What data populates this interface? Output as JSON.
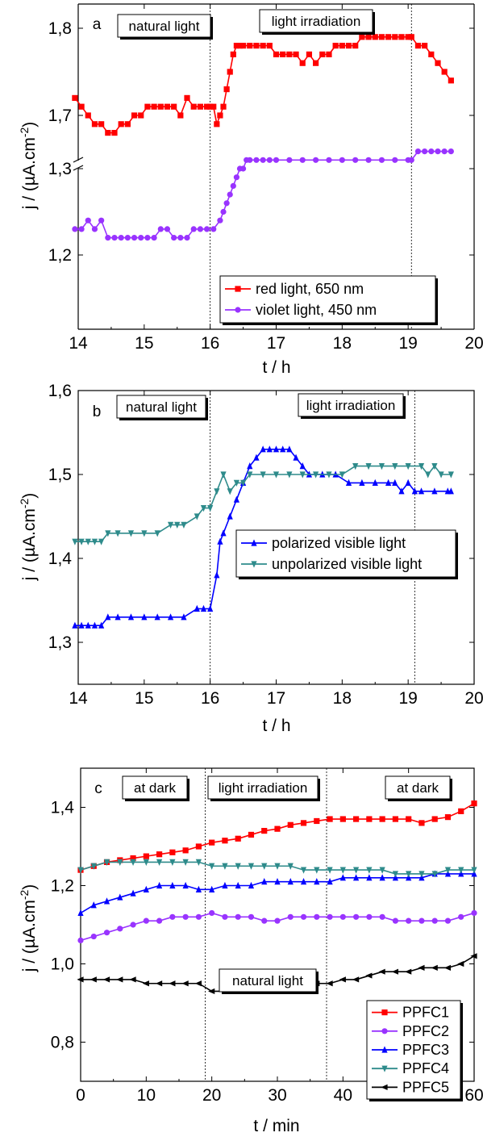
{
  "chart_data": [
    {
      "type": "line",
      "panel_label": "a",
      "xlabel": "t / h",
      "ylabel": "j / (µA.cm-2)",
      "xlim": [
        14,
        20
      ],
      "x_ticks": [
        "14",
        "15",
        "16",
        "17",
        "18",
        "19",
        "20"
      ],
      "y_ticks": [
        "1,2",
        "1,3",
        "1,7",
        "1,8"
      ],
      "y_axis_break": "between 1,3 and 1,7",
      "grid": false,
      "legend_position": "bottom-right",
      "vlines_x": [
        16.0,
        19.05
      ],
      "annotations": [
        "natural light",
        "light irradiation"
      ],
      "series": [
        {
          "name": "red light, 650 nm",
          "color": "#ff0000",
          "marker": "square",
          "x": [
            13.95,
            14.05,
            14.15,
            14.25,
            14.35,
            14.45,
            14.55,
            14.65,
            14.75,
            14.85,
            14.95,
            15.05,
            15.15,
            15.25,
            15.35,
            15.45,
            15.55,
            15.65,
            15.75,
            15.85,
            15.95,
            16.0,
            16.05,
            16.1,
            16.15,
            16.2,
            16.25,
            16.3,
            16.35,
            16.4,
            16.45,
            16.5,
            16.6,
            16.7,
            16.8,
            16.9,
            17.0,
            17.1,
            17.2,
            17.3,
            17.4,
            17.5,
            17.6,
            17.7,
            17.8,
            17.9,
            18.0,
            18.1,
            18.2,
            18.3,
            18.4,
            18.5,
            18.6,
            18.7,
            18.8,
            18.9,
            19.0,
            19.05,
            19.15,
            19.25,
            19.35,
            19.45,
            19.55,
            19.65
          ],
          "y": [
            1.72,
            1.71,
            1.7,
            1.69,
            1.69,
            1.68,
            1.68,
            1.69,
            1.69,
            1.7,
            1.7,
            1.71,
            1.71,
            1.71,
            1.71,
            1.71,
            1.7,
            1.72,
            1.71,
            1.71,
            1.71,
            1.71,
            1.71,
            1.69,
            1.7,
            1.71,
            1.73,
            1.75,
            1.77,
            1.78,
            1.78,
            1.78,
            1.78,
            1.78,
            1.78,
            1.78,
            1.77,
            1.77,
            1.77,
            1.77,
            1.76,
            1.77,
            1.76,
            1.77,
            1.77,
            1.78,
            1.78,
            1.78,
            1.78,
            1.79,
            1.79,
            1.79,
            1.79,
            1.79,
            1.79,
            1.79,
            1.79,
            1.79,
            1.78,
            1.78,
            1.77,
            1.76,
            1.75,
            1.74
          ]
        },
        {
          "name": "violet light, 450 nm",
          "color": "#9933ff",
          "marker": "circle",
          "x": [
            13.95,
            14.05,
            14.15,
            14.25,
            14.35,
            14.45,
            14.55,
            14.65,
            14.75,
            14.85,
            14.95,
            15.05,
            15.15,
            15.25,
            15.35,
            15.45,
            15.55,
            15.65,
            15.75,
            15.85,
            15.95,
            16.05,
            16.15,
            16.2,
            16.25,
            16.3,
            16.35,
            16.4,
            16.45,
            16.5,
            16.55,
            16.6,
            16.7,
            16.8,
            16.9,
            17.0,
            17.2,
            17.4,
            17.6,
            17.8,
            18.0,
            18.2,
            18.4,
            18.6,
            18.8,
            19.0,
            19.05,
            19.15,
            19.25,
            19.35,
            19.45,
            19.55,
            19.65
          ],
          "y": [
            1.23,
            1.23,
            1.24,
            1.23,
            1.24,
            1.22,
            1.22,
            1.22,
            1.22,
            1.22,
            1.22,
            1.22,
            1.22,
            1.23,
            1.23,
            1.22,
            1.22,
            1.22,
            1.23,
            1.23,
            1.23,
            1.23,
            1.24,
            1.25,
            1.26,
            1.27,
            1.28,
            1.29,
            1.3,
            1.3,
            1.31,
            1.31,
            1.31,
            1.31,
            1.31,
            1.31,
            1.31,
            1.31,
            1.31,
            1.31,
            1.31,
            1.31,
            1.31,
            1.31,
            1.31,
            1.31,
            1.31,
            1.32,
            1.32,
            1.32,
            1.32,
            1.32,
            1.32
          ]
        }
      ]
    },
    {
      "type": "line",
      "panel_label": "b",
      "xlabel": "t / h",
      "ylabel": "j / (µA.cm-2)",
      "xlim": [
        14,
        20
      ],
      "ylim": [
        1.25,
        1.6
      ],
      "x_ticks": [
        "14",
        "15",
        "16",
        "17",
        "18",
        "19",
        "20"
      ],
      "y_ticks": [
        "1,3",
        "1,4",
        "1,5",
        "1,6"
      ],
      "grid": false,
      "legend_position": "right",
      "vlines_x": [
        16.0,
        19.1
      ],
      "annotations": [
        "natural light",
        "light irradiation"
      ],
      "series": [
        {
          "name": "polarized visible light",
          "color": "#0000ff",
          "marker": "triangle-up",
          "x": [
            13.95,
            14.05,
            14.15,
            14.25,
            14.35,
            14.45,
            14.6,
            14.8,
            15.0,
            15.2,
            15.4,
            15.6,
            15.8,
            15.9,
            16.0,
            16.1,
            16.15,
            16.2,
            16.3,
            16.4,
            16.5,
            16.6,
            16.7,
            16.8,
            16.9,
            17.0,
            17.1,
            17.2,
            17.3,
            17.4,
            17.5,
            17.7,
            17.9,
            18.1,
            18.3,
            18.5,
            18.7,
            18.8,
            18.9,
            19.0,
            19.1,
            19.2,
            19.4,
            19.6,
            19.65
          ],
          "y": [
            1.32,
            1.32,
            1.32,
            1.32,
            1.32,
            1.33,
            1.33,
            1.33,
            1.33,
            1.33,
            1.33,
            1.33,
            1.34,
            1.34,
            1.34,
            1.38,
            1.42,
            1.43,
            1.45,
            1.47,
            1.49,
            1.51,
            1.52,
            1.53,
            1.53,
            1.53,
            1.53,
            1.53,
            1.52,
            1.51,
            1.5,
            1.5,
            1.5,
            1.49,
            1.49,
            1.49,
            1.49,
            1.49,
            1.48,
            1.49,
            1.48,
            1.48,
            1.48,
            1.48,
            1.48
          ]
        },
        {
          "name": "unpolarized visible light",
          "color": "#2e8b8b",
          "marker": "triangle-down",
          "x": [
            13.95,
            14.05,
            14.15,
            14.25,
            14.35,
            14.45,
            14.6,
            14.8,
            15.0,
            15.2,
            15.4,
            15.5,
            15.6,
            15.8,
            15.9,
            16.0,
            16.1,
            16.2,
            16.3,
            16.4,
            16.5,
            16.6,
            16.8,
            17.0,
            17.2,
            17.4,
            17.6,
            17.8,
            18.0,
            18.2,
            18.4,
            18.6,
            18.8,
            19.0,
            19.2,
            19.3,
            19.4,
            19.5,
            19.65
          ],
          "y": [
            1.42,
            1.42,
            1.42,
            1.42,
            1.42,
            1.43,
            1.43,
            1.43,
            1.43,
            1.43,
            1.44,
            1.44,
            1.44,
            1.45,
            1.46,
            1.46,
            1.48,
            1.5,
            1.48,
            1.49,
            1.49,
            1.5,
            1.5,
            1.5,
            1.5,
            1.5,
            1.5,
            1.5,
            1.5,
            1.51,
            1.51,
            1.51,
            1.51,
            1.51,
            1.51,
            1.5,
            1.51,
            1.5,
            1.5
          ]
        }
      ]
    },
    {
      "type": "line",
      "panel_label": "c",
      "xlabel": "t / min",
      "ylabel": "j / (µA.cm-2)",
      "xlim": [
        0,
        60
      ],
      "ylim": [
        0.7,
        1.5
      ],
      "x_ticks": [
        "0",
        "10",
        "20",
        "30",
        "40",
        "50",
        "60"
      ],
      "y_ticks": [
        "0,8",
        "1,0",
        "1,2",
        "1,4"
      ],
      "grid": false,
      "legend_position": "bottom-right",
      "vlines_x": [
        19,
        37.5
      ],
      "annotations": [
        "at dark",
        "light irradiation",
        "at dark",
        "natural light"
      ],
      "series": [
        {
          "name": "PPFC1",
          "color": "#ff0000",
          "marker": "square",
          "x": [
            0,
            2,
            4,
            6,
            8,
            10,
            12,
            14,
            16,
            18,
            20,
            22,
            24,
            26,
            28,
            30,
            32,
            34,
            36,
            38,
            40,
            42,
            44,
            46,
            48,
            50,
            52,
            54,
            56,
            58,
            60
          ],
          "y": [
            1.24,
            1.25,
            1.26,
            1.265,
            1.27,
            1.275,
            1.28,
            1.285,
            1.29,
            1.3,
            1.31,
            1.315,
            1.32,
            1.33,
            1.34,
            1.345,
            1.355,
            1.36,
            1.365,
            1.37,
            1.37,
            1.37,
            1.37,
            1.37,
            1.37,
            1.37,
            1.36,
            1.37,
            1.375,
            1.39,
            1.41
          ]
        },
        {
          "name": "PPFC2",
          "color": "#9933ff",
          "marker": "circle",
          "x": [
            0,
            2,
            4,
            6,
            8,
            10,
            12,
            14,
            16,
            18,
            20,
            22,
            24,
            26,
            28,
            30,
            32,
            34,
            36,
            38,
            40,
            42,
            44,
            46,
            48,
            50,
            52,
            54,
            56,
            58,
            60
          ],
          "y": [
            1.06,
            1.07,
            1.08,
            1.09,
            1.1,
            1.11,
            1.11,
            1.12,
            1.12,
            1.12,
            1.13,
            1.12,
            1.12,
            1.12,
            1.11,
            1.11,
            1.12,
            1.12,
            1.12,
            1.12,
            1.12,
            1.12,
            1.12,
            1.12,
            1.11,
            1.11,
            1.11,
            1.11,
            1.11,
            1.12,
            1.13
          ]
        },
        {
          "name": "PPFC3",
          "color": "#0000ff",
          "marker": "triangle-up",
          "x": [
            0,
            2,
            4,
            6,
            8,
            10,
            12,
            14,
            16,
            18,
            20,
            22,
            24,
            26,
            28,
            30,
            32,
            34,
            36,
            38,
            40,
            42,
            44,
            46,
            48,
            50,
            52,
            54,
            56,
            58,
            60
          ],
          "y": [
            1.13,
            1.15,
            1.16,
            1.17,
            1.18,
            1.19,
            1.2,
            1.2,
            1.2,
            1.19,
            1.19,
            1.2,
            1.2,
            1.2,
            1.21,
            1.21,
            1.21,
            1.21,
            1.21,
            1.21,
            1.22,
            1.22,
            1.22,
            1.22,
            1.22,
            1.22,
            1.22,
            1.23,
            1.23,
            1.23,
            1.23
          ]
        },
        {
          "name": "PPFC4",
          "color": "#2e8b8b",
          "marker": "triangle-down",
          "x": [
            0,
            2,
            4,
            6,
            8,
            10,
            12,
            14,
            16,
            18,
            20,
            22,
            24,
            26,
            28,
            30,
            32,
            34,
            36,
            38,
            40,
            42,
            44,
            46,
            48,
            50,
            52,
            54,
            56,
            58,
            60
          ],
          "y": [
            1.24,
            1.25,
            1.26,
            1.26,
            1.26,
            1.26,
            1.26,
            1.26,
            1.26,
            1.26,
            1.25,
            1.25,
            1.25,
            1.25,
            1.25,
            1.25,
            1.25,
            1.24,
            1.24,
            1.24,
            1.24,
            1.24,
            1.24,
            1.24,
            1.23,
            1.23,
            1.23,
            1.23,
            1.24,
            1.24,
            1.24
          ]
        },
        {
          "name": "PPFC5",
          "color": "#000000",
          "marker": "triangle-left",
          "x": [
            0,
            2,
            4,
            6,
            8,
            10,
            12,
            14,
            16,
            18,
            20,
            22,
            24,
            26,
            28,
            30,
            32,
            34,
            36,
            38,
            40,
            42,
            44,
            46,
            48,
            50,
            52,
            54,
            56,
            58,
            60
          ],
          "y": [
            0.96,
            0.96,
            0.96,
            0.96,
            0.96,
            0.95,
            0.95,
            0.95,
            0.95,
            0.95,
            0.93,
            0.93,
            0.93,
            0.93,
            0.93,
            0.94,
            0.94,
            0.95,
            0.95,
            0.95,
            0.96,
            0.96,
            0.97,
            0.98,
            0.98,
            0.98,
            0.99,
            0.99,
            0.99,
            1.0,
            1.02
          ]
        }
      ]
    }
  ]
}
